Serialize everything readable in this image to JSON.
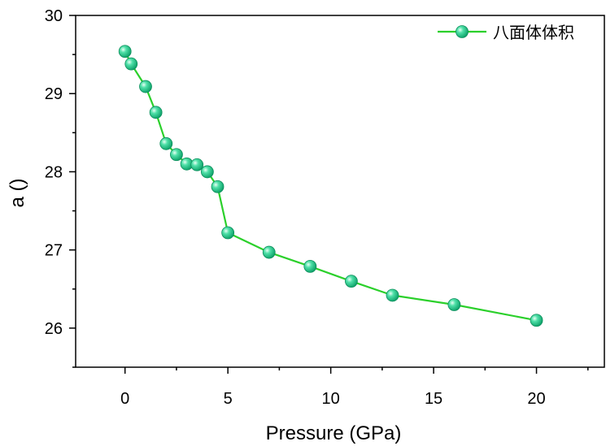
{
  "chart_data": {
    "type": "line",
    "xlabel": "Pressure (GPa)",
    "ylabel": "a ()",
    "xlim": [
      -2.4,
      23.3
    ],
    "ylim": [
      25.5,
      30
    ],
    "xticks": [
      0,
      5,
      10,
      15,
      20
    ],
    "yticks": [
      26,
      27,
      28,
      29,
      30
    ],
    "grid": false,
    "legend_position": "top-right",
    "series": [
      {
        "name": "八面体体积",
        "color": "#2bd02b",
        "marker_color": "#10c788",
        "x": [
          0,
          0.3,
          1,
          1.5,
          2,
          2.5,
          3,
          3.5,
          4,
          4.5,
          5,
          7,
          9,
          11,
          13,
          16,
          20
        ],
        "y": [
          29.54,
          29.38,
          29.09,
          28.76,
          28.36,
          28.22,
          28.1,
          28.09,
          28.0,
          27.81,
          27.22,
          26.97,
          26.79,
          26.6,
          26.42,
          26.3,
          26.1
        ]
      }
    ]
  }
}
